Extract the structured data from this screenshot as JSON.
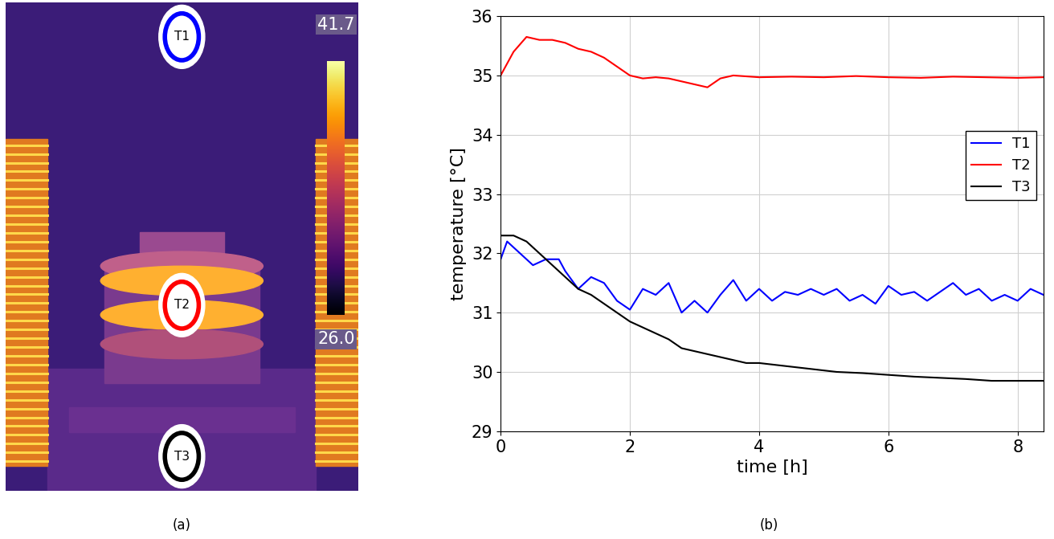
{
  "chart_data": {
    "type": "line",
    "caption": "(b)",
    "x_label": "time [h]",
    "y_label": "temperature [°C]",
    "xlim": [
      0,
      8.4
    ],
    "xticks": [
      0,
      2,
      4,
      6,
      8
    ],
    "ylim": [
      29,
      36
    ],
    "yticks": [
      29,
      30,
      31,
      32,
      33,
      34,
      35,
      36
    ],
    "grid": true,
    "legend": "center right",
    "series": [
      {
        "name": "T1",
        "color": "#0000ff",
        "x": [
          0,
          0.1,
          0.3,
          0.5,
          0.7,
          0.9,
          1.0,
          1.2,
          1.4,
          1.6,
          1.8,
          2.0,
          2.2,
          2.4,
          2.6,
          2.8,
          3.0,
          3.2,
          3.4,
          3.6,
          3.8,
          4.0,
          4.2,
          4.4,
          4.6,
          4.8,
          5.0,
          5.2,
          5.4,
          5.6,
          5.8,
          6.0,
          6.2,
          6.4,
          6.6,
          6.8,
          7.0,
          7.2,
          7.4,
          7.6,
          7.8,
          8.0,
          8.2,
          8.4
        ],
        "values": [
          31.9,
          32.2,
          32.0,
          31.8,
          31.9,
          31.9,
          31.7,
          31.4,
          31.6,
          31.5,
          31.2,
          31.05,
          31.4,
          31.3,
          31.5,
          31.0,
          31.2,
          31.0,
          31.3,
          31.55,
          31.2,
          31.4,
          31.2,
          31.35,
          31.3,
          31.4,
          31.3,
          31.4,
          31.2,
          31.3,
          31.15,
          31.45,
          31.3,
          31.35,
          31.2,
          31.35,
          31.5,
          31.3,
          31.4,
          31.2,
          31.3,
          31.2,
          31.4,
          31.3
        ]
      },
      {
        "name": "T2",
        "color": "#ff0000",
        "x": [
          0,
          0.2,
          0.4,
          0.6,
          0.8,
          1.0,
          1.2,
          1.4,
          1.6,
          1.8,
          2.0,
          2.2,
          2.4,
          2.6,
          2.8,
          3.0,
          3.2,
          3.4,
          3.6,
          4.0,
          4.5,
          5.0,
          5.5,
          6.0,
          6.5,
          7.0,
          7.5,
          8.0,
          8.4
        ],
        "values": [
          35.0,
          35.4,
          35.65,
          35.6,
          35.6,
          35.55,
          35.45,
          35.4,
          35.3,
          35.15,
          35.0,
          34.95,
          34.97,
          34.95,
          34.9,
          34.85,
          34.8,
          34.95,
          35.0,
          34.97,
          34.98,
          34.97,
          34.99,
          34.97,
          34.96,
          34.98,
          34.97,
          34.96,
          34.97
        ]
      },
      {
        "name": "T3",
        "color": "#000000",
        "x": [
          0,
          0.2,
          0.4,
          0.6,
          0.8,
          1.0,
          1.2,
          1.4,
          1.6,
          1.8,
          2.0,
          2.2,
          2.4,
          2.6,
          2.8,
          3.0,
          3.2,
          3.4,
          3.6,
          3.8,
          4.0,
          4.4,
          4.8,
          5.2,
          5.6,
          6.0,
          6.4,
          6.8,
          7.2,
          7.6,
          8.0,
          8.4
        ],
        "values": [
          32.3,
          32.3,
          32.2,
          32.0,
          31.8,
          31.6,
          31.4,
          31.3,
          31.15,
          31.0,
          30.85,
          30.75,
          30.65,
          30.55,
          30.4,
          30.35,
          30.3,
          30.25,
          30.2,
          30.15,
          30.15,
          30.1,
          30.05,
          30.0,
          29.98,
          29.95,
          29.92,
          29.9,
          29.88,
          29.85,
          29.85,
          29.85
        ]
      }
    ]
  },
  "thermal_image": {
    "caption": "(a)",
    "colorbar": {
      "range": [
        26.0,
        41.7
      ],
      "range_labels": [
        "26.0",
        "41.7"
      ]
    },
    "markers": [
      {
        "label": "T1",
        "color": "#0000ff"
      },
      {
        "label": "T2",
        "color": "#ff0000"
      },
      {
        "label": "T3",
        "color": "#000000"
      }
    ]
  }
}
